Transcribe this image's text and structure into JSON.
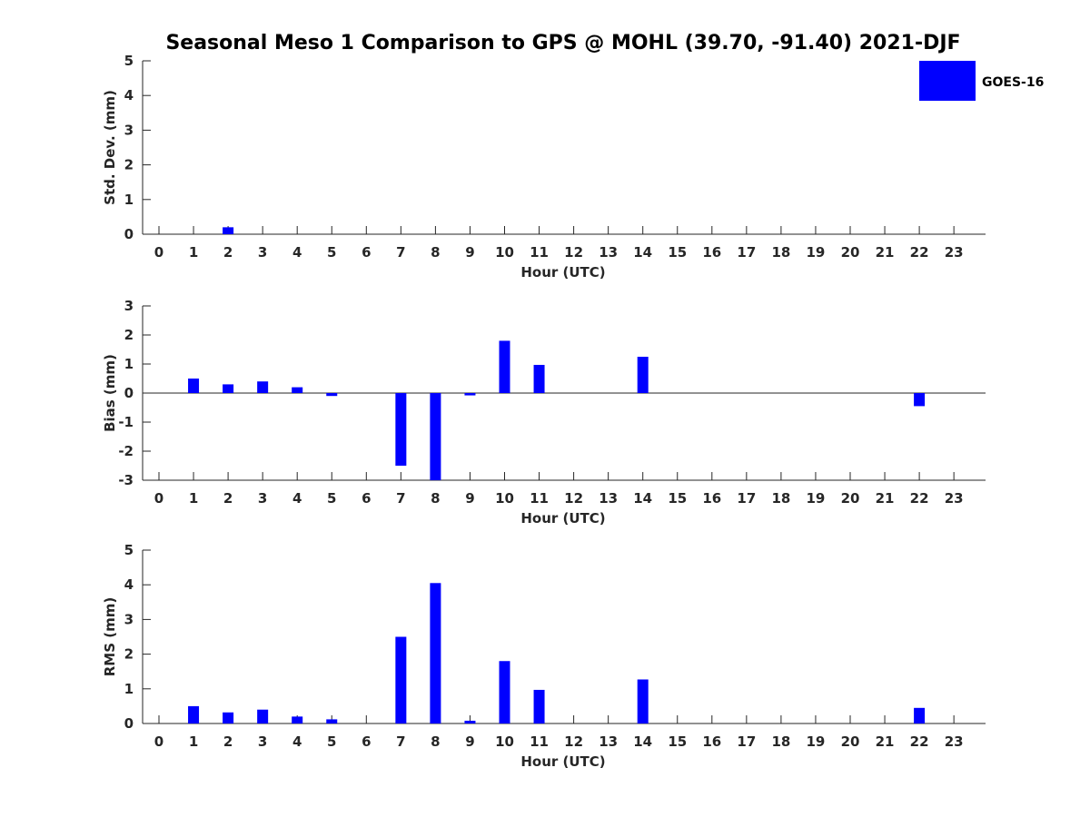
{
  "title": "Seasonal Meso 1 Comparison to GPS @ MOHL (39.70, -91.40) 2021-DJF",
  "legend": {
    "label": "GOES-16",
    "color": "#0000ff"
  },
  "chart_data": [
    {
      "type": "bar",
      "name": "std-dev",
      "xlabel": "Hour (UTC)",
      "ylabel": "Std. Dev. (mm)",
      "ylim": [
        0,
        5
      ],
      "yticks": [
        "0",
        "1",
        "2",
        "3",
        "4",
        "5"
      ],
      "categories": [
        "0",
        "1",
        "2",
        "3",
        "4",
        "5",
        "6",
        "7",
        "8",
        "9",
        "10",
        "11",
        "12",
        "13",
        "14",
        "15",
        "16",
        "17",
        "18",
        "19",
        "20",
        "21",
        "22",
        "23"
      ],
      "series": [
        {
          "name": "GOES-16",
          "values": [
            null,
            0,
            0.2,
            0,
            0,
            0,
            null,
            0,
            0,
            0,
            0,
            0,
            null,
            null,
            0,
            null,
            null,
            null,
            null,
            null,
            null,
            null,
            0,
            null
          ]
        }
      ]
    },
    {
      "type": "bar",
      "name": "bias",
      "xlabel": "Hour (UTC)",
      "ylabel": "Bias (mm)",
      "ylim": [
        -3,
        3
      ],
      "yticks": [
        "-3",
        "-2",
        "-1",
        "0",
        "1",
        "2",
        "3"
      ],
      "categories": [
        "0",
        "1",
        "2",
        "3",
        "4",
        "5",
        "6",
        "7",
        "8",
        "9",
        "10",
        "11",
        "12",
        "13",
        "14",
        "15",
        "16",
        "17",
        "18",
        "19",
        "20",
        "21",
        "22",
        "23"
      ],
      "series": [
        {
          "name": "GOES-16",
          "values": [
            null,
            0.5,
            0.3,
            0.4,
            0.2,
            -0.1,
            null,
            -2.5,
            -3.0,
            -0.08,
            1.8,
            0.97,
            null,
            null,
            1.25,
            null,
            null,
            null,
            null,
            null,
            null,
            null,
            -0.45,
            null
          ]
        }
      ]
    },
    {
      "type": "bar",
      "name": "rms",
      "xlabel": "Hour (UTC)",
      "ylabel": "RMS (mm)",
      "ylim": [
        0,
        5
      ],
      "yticks": [
        "0",
        "1",
        "2",
        "3",
        "4",
        "5"
      ],
      "categories": [
        "0",
        "1",
        "2",
        "3",
        "4",
        "5",
        "6",
        "7",
        "8",
        "9",
        "10",
        "11",
        "12",
        "13",
        "14",
        "15",
        "16",
        "17",
        "18",
        "19",
        "20",
        "21",
        "22",
        "23"
      ],
      "series": [
        {
          "name": "GOES-16",
          "values": [
            null,
            0.5,
            0.32,
            0.4,
            0.2,
            0.12,
            null,
            2.5,
            4.05,
            0.08,
            1.8,
            0.97,
            null,
            null,
            1.27,
            null,
            null,
            null,
            null,
            null,
            null,
            null,
            0.45,
            null
          ]
        }
      ]
    }
  ]
}
